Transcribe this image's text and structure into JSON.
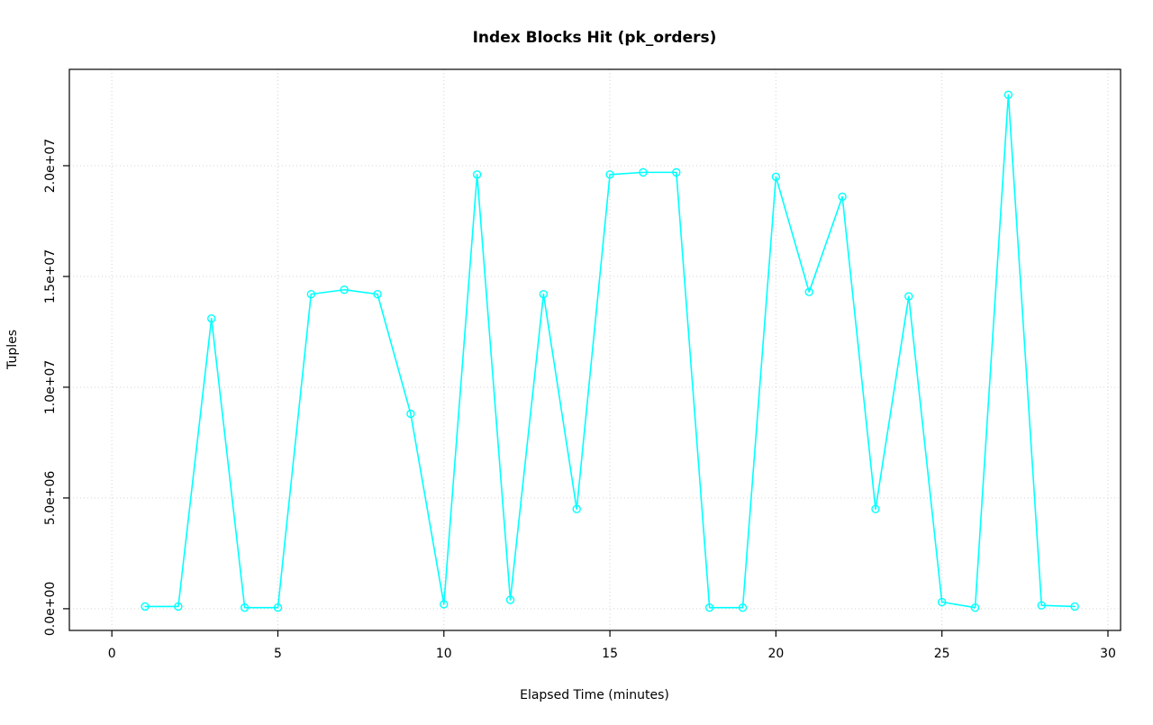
{
  "chart_data": {
    "type": "line",
    "title": "Index Blocks Hit (pk_orders)",
    "xlabel": "Elapsed Time (minutes)",
    "ylabel": "Tuples",
    "x": [
      1,
      2,
      3,
      4,
      5,
      6,
      7,
      8,
      9,
      10,
      11,
      12,
      13,
      14,
      15,
      16,
      17,
      18,
      19,
      20,
      21,
      22,
      23,
      24,
      25,
      26,
      27,
      28,
      29
    ],
    "values": [
      100000,
      100000,
      13100000,
      50000,
      50000,
      14200000,
      14400000,
      14200000,
      8800000,
      200000,
      19600000,
      400000,
      14200000,
      4500000,
      19600000,
      19700000,
      19700000,
      50000,
      50000,
      19500000,
      14300000,
      18600000,
      4500000,
      14100000,
      300000,
      50000,
      23200000,
      150000,
      100000
    ],
    "xticks": {
      "values": [
        0,
        5,
        10,
        15,
        20,
        25,
        30
      ],
      "labels": [
        "0",
        "5",
        "10",
        "15",
        "20",
        "25",
        "30"
      ]
    },
    "yticks": {
      "values": [
        0,
        5000000,
        10000000,
        15000000,
        20000000
      ],
      "labels": [
        "0.0e+00",
        "5.0e+06",
        "1.0e+07",
        "1.5e+07",
        "2.0e+07"
      ]
    },
    "xlim": [
      -1.28,
      30.38
    ],
    "ylim": [
      -980000,
      24350000
    ],
    "grid": true,
    "grid_style": "dotted",
    "legend_position": "none",
    "marker": "open-circle",
    "colors": {
      "line": "#00FFFF",
      "grid": "#D3D3D3",
      "axis": "#000000",
      "background": "#FFFFFF"
    }
  }
}
